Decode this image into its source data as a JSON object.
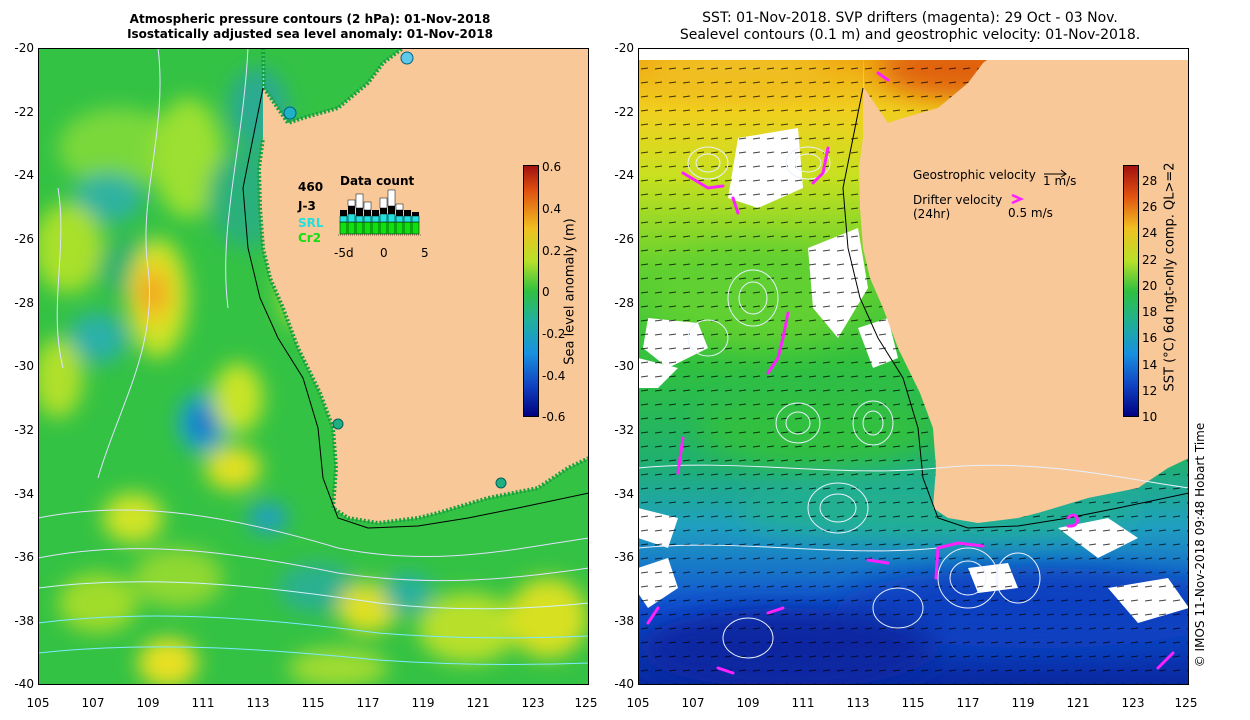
{
  "left_panel": {
    "title_line1": "Atmospheric pressure contours (2 hPa): 01-Nov-2018",
    "title_line2": "Isostatically adjusted sea level anomaly: 01-Nov-2018",
    "colorbar": {
      "label": "Sea level anomaly (m)",
      "ticks": [
        "0.6",
        "0.4",
        "0.2",
        "0",
        "-0.2",
        "-0.4",
        "-0.6"
      ],
      "range": [
        -0.6,
        0.6
      ]
    },
    "data_count": {
      "title": "Data count",
      "count": "460",
      "legend": [
        {
          "label": "J-3",
          "color": "#000000"
        },
        {
          "label": "SRL",
          "color": "#20e0e0"
        },
        {
          "label": "Cr2",
          "color": "#10e010"
        }
      ],
      "axis_ticks": [
        "-5d",
        "0",
        "5"
      ]
    }
  },
  "right_panel": {
    "title_line1": "SST: 01-Nov-2018. SVP drifters (magenta): 29 Oct - 03 Nov.",
    "title_line2": "Sealevel contours (0.1 m) and geostrophic velocity: 01-Nov-2018.",
    "colorbar": {
      "label": "SST (°C) 6d ngt-only comp. QL>=2",
      "ticks": [
        "28",
        "26",
        "24",
        "22",
        "20",
        "18",
        "16",
        "14",
        "12",
        "10"
      ],
      "range": [
        10,
        29
      ]
    },
    "legend": {
      "geostrophic_label": "Geostrophic velocity",
      "geostrophic_scale": "1 m/s",
      "drifter_label": "Drifter velocity",
      "drifter_sub": "(24hr)",
      "drifter_scale": "0.5 m/s"
    },
    "credit": "© IMOS 11-Nov-2018 09:48 Hobart Time"
  },
  "axes": {
    "lon_ticks": [
      "105",
      "107",
      "109",
      "111",
      "113",
      "115",
      "117",
      "119",
      "121",
      "123",
      "125"
    ],
    "lat_ticks": [
      "-20",
      "-22",
      "-24",
      "-26",
      "-28",
      "-30",
      "-32",
      "-34",
      "-36",
      "-38",
      "-40"
    ],
    "lon_range": [
      105,
      125
    ],
    "lat_range": [
      -40,
      -20
    ]
  },
  "colors": {
    "land": "#f8c898",
    "sla_base": "#30c040",
    "magenta": "#ff20ff"
  }
}
